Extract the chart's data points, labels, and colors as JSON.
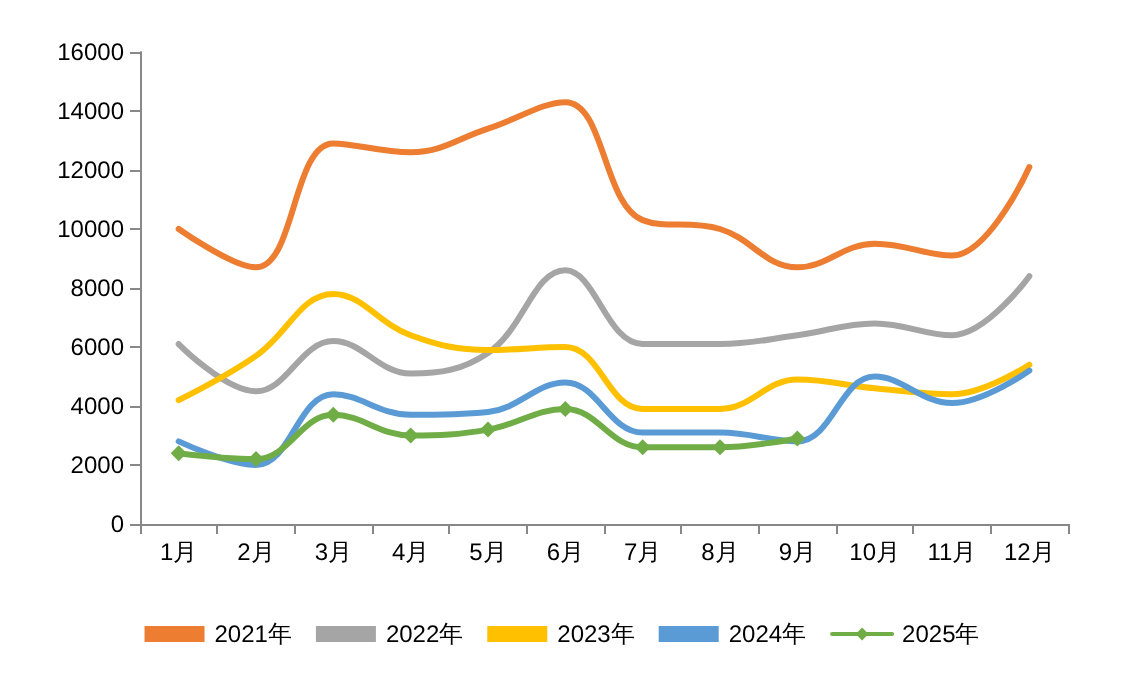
{
  "chart_data": {
    "type": "line",
    "categories": [
      "1月",
      "2月",
      "3月",
      "4月",
      "5月",
      "6月",
      "7月",
      "8月",
      "9月",
      "10月",
      "11月",
      "12月"
    ],
    "ylim": [
      0,
      16000
    ],
    "yticks": [
      0,
      2000,
      4000,
      6000,
      8000,
      10000,
      12000,
      14000,
      16000
    ],
    "grid": false,
    "legend": "bottom",
    "marker": "none",
    "series": [
      {
        "name": "2021年",
        "color": "#ed7d31",
        "values": [
          10000,
          8700,
          12900,
          12600,
          13400,
          14300,
          10300,
          10000,
          8700,
          9500,
          9100,
          12100
        ]
      },
      {
        "name": "2022年",
        "color": "#a5a5a5",
        "values": [
          6100,
          4500,
          6200,
          5100,
          5800,
          8600,
          6100,
          6100,
          6400,
          6800,
          6400,
          8400
        ]
      },
      {
        "name": "2023年",
        "color": "#ffc000",
        "values": [
          4200,
          5700,
          7800,
          6400,
          5900,
          6000,
          3900,
          3900,
          4900,
          4600,
          4400,
          5400
        ]
      },
      {
        "name": "2024年",
        "color": "#5b9bd5",
        "values": [
          2800,
          2000,
          4400,
          3700,
          3800,
          4800,
          3100,
          3100,
          2800,
          5000,
          4100,
          5200
        ]
      },
      {
        "name": "2025年",
        "color": "#70ad47",
        "marker": "diamond",
        "values": [
          2400,
          2200,
          3700,
          3000,
          3200,
          3900,
          2600,
          2600,
          2900,
          null,
          null,
          null
        ]
      }
    ]
  }
}
